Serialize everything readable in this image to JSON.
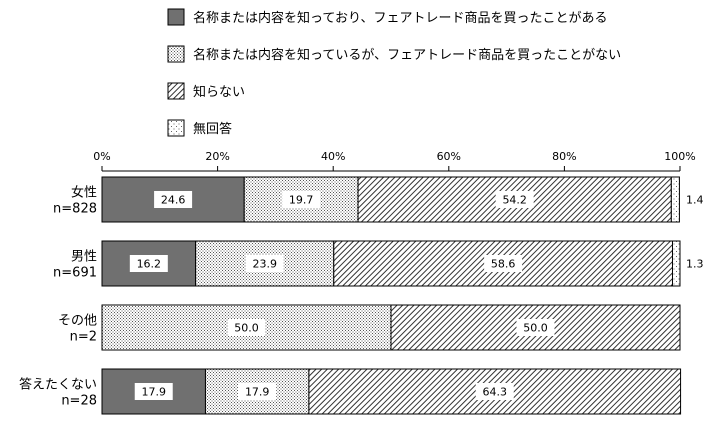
{
  "chart_data": {
    "type": "bar",
    "orientation": "horizontal",
    "stacked": "percent",
    "legend": {
      "placement": "top",
      "entries": [
        {
          "name": "名称または内容を知っており、フェアトレード商品を買ったことがある",
          "pattern": "solid-dark"
        },
        {
          "name": "名称または内容を知っているが、フェアトレード商品を買ったことがない",
          "pattern": "dots-dense"
        },
        {
          "name": "知らない",
          "pattern": "diagonal-hatch"
        },
        {
          "name": "無回答",
          "pattern": "dots-sparse"
        }
      ]
    },
    "x_ticks": [
      "0%",
      "20%",
      "40%",
      "60%",
      "80%",
      "100%"
    ],
    "xlim": [
      0,
      100
    ],
    "grid": false,
    "categories": [
      {
        "label": "女性",
        "n": "n=828"
      },
      {
        "label": "男性",
        "n": "n=691"
      },
      {
        "label": "その他",
        "n": "n=2"
      },
      {
        "label": "答えたくない",
        "n": "n=28"
      }
    ],
    "series": [
      {
        "name": "名称または内容を知っており、フェアトレード商品を買ったことがある",
        "values": [
          24.6,
          16.2,
          0,
          17.9
        ],
        "labels": [
          "24.6",
          "16.2",
          "",
          "17.9"
        ]
      },
      {
        "name": "名称または内容を知っているが、フェアトレード商品を買ったことがない",
        "values": [
          19.7,
          23.9,
          50.0,
          17.9
        ],
        "labels": [
          "19.7",
          "23.9",
          "50.0",
          "17.9"
        ]
      },
      {
        "name": "知らない",
        "values": [
          54.2,
          58.6,
          50.0,
          64.3
        ],
        "labels": [
          "54.2",
          "58.6",
          "50.0",
          "64.3"
        ]
      },
      {
        "name": "無回答",
        "values": [
          1.4,
          1.3,
          0,
          0
        ],
        "labels": [
          "1.4",
          "1.3",
          "",
          ""
        ]
      }
    ],
    "outside_labels_series": 3
  }
}
